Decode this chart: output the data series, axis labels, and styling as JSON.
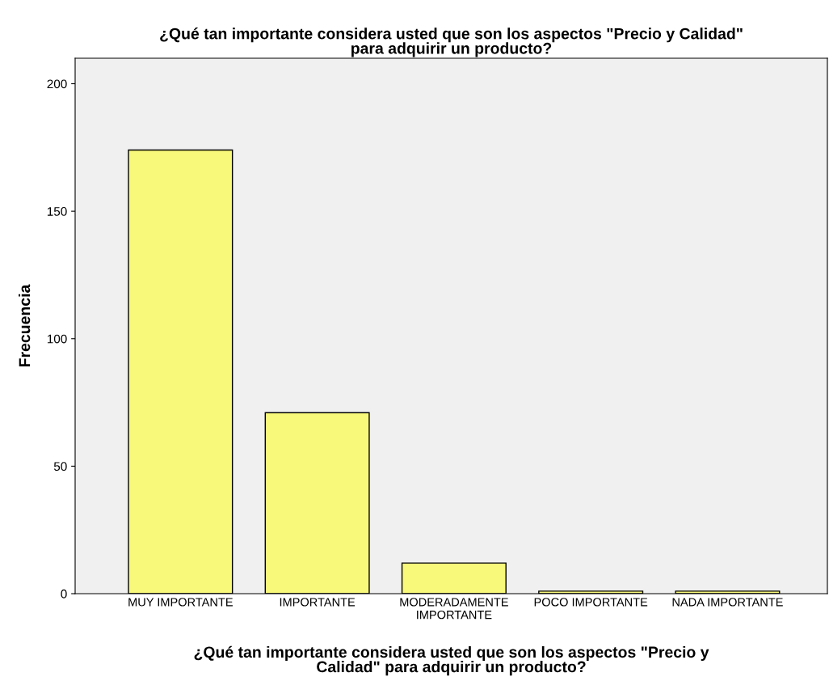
{
  "chart_data": {
    "type": "bar",
    "title": "¿Qué tan importante considera usted que son los aspectos \"Precio y Calidad\"\npara adquirir un producto?",
    "xlabel": "¿Qué tan importante considera usted que son los aspectos \"Precio y\nCalidad\" para adquirir un producto?",
    "ylabel": "Frecuencia",
    "categories": [
      "MUY IMPORTANTE",
      "IMPORTANTE",
      "MODERADAMENTE\nIMPORTANTE",
      "POCO IMPORTANTE",
      "NADA IMPORTANTE"
    ],
    "values": [
      174,
      71,
      12,
      1,
      1
    ],
    "color": "#f8f87a",
    "ylim": [
      0,
      210
    ],
    "yticks": [
      0,
      50,
      100,
      150,
      200
    ],
    "grid": false,
    "legend": false
  }
}
